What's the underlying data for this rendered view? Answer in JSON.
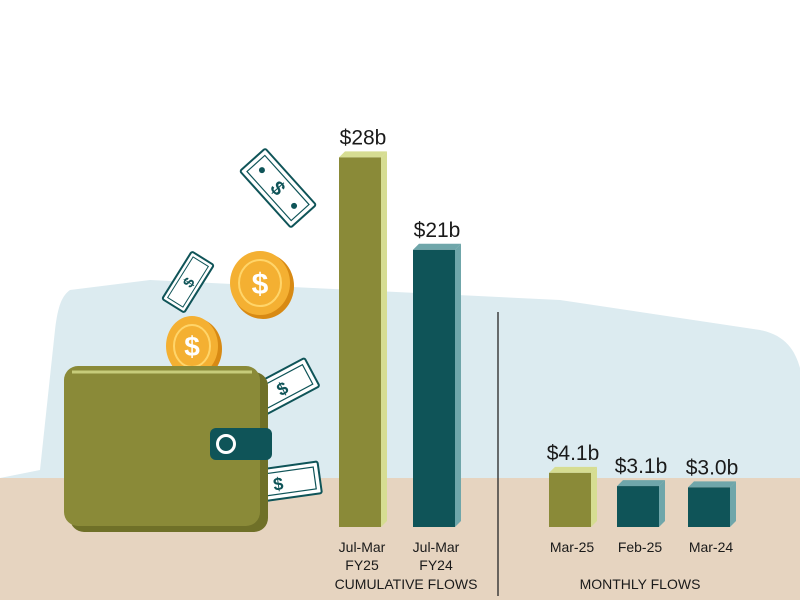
{
  "colors": {
    "sky": "#dcebf0",
    "ground": "#e6d4c0",
    "olive": "#8a8a38",
    "olive_light": "#d6dd92",
    "teal": "#0f5458",
    "teal_light": "#6fa6aa",
    "coin": "#f0a828",
    "bill": "#ffffff",
    "bill_accent": "#0f5458"
  },
  "icons": [
    "wallet-icon",
    "coin-icon",
    "banknote-icon"
  ],
  "chart_data": [
    {
      "type": "bar",
      "group_label": "CUMULATIVE FLOWS",
      "categories": [
        "Jul-Mar FY25",
        "Jul-Mar FY24"
      ],
      "tick_lines": [
        [
          "Jul-Mar",
          "FY25"
        ],
        [
          "Jul-Mar",
          "FY24"
        ]
      ],
      "values": [
        28,
        21
      ],
      "value_labels": [
        "$28b",
        "$21b"
      ],
      "colors": [
        "olive",
        "teal"
      ]
    },
    {
      "type": "bar",
      "group_label": "MONTHLY FLOWS",
      "categories": [
        "Mar-25",
        "Feb-25",
        "Mar-24"
      ],
      "values": [
        4.1,
        3.1,
        3.0
      ],
      "value_labels": [
        "$4.1b",
        "$3.1b",
        "$3.0b"
      ],
      "colors": [
        "olive",
        "teal",
        "teal"
      ]
    }
  ]
}
